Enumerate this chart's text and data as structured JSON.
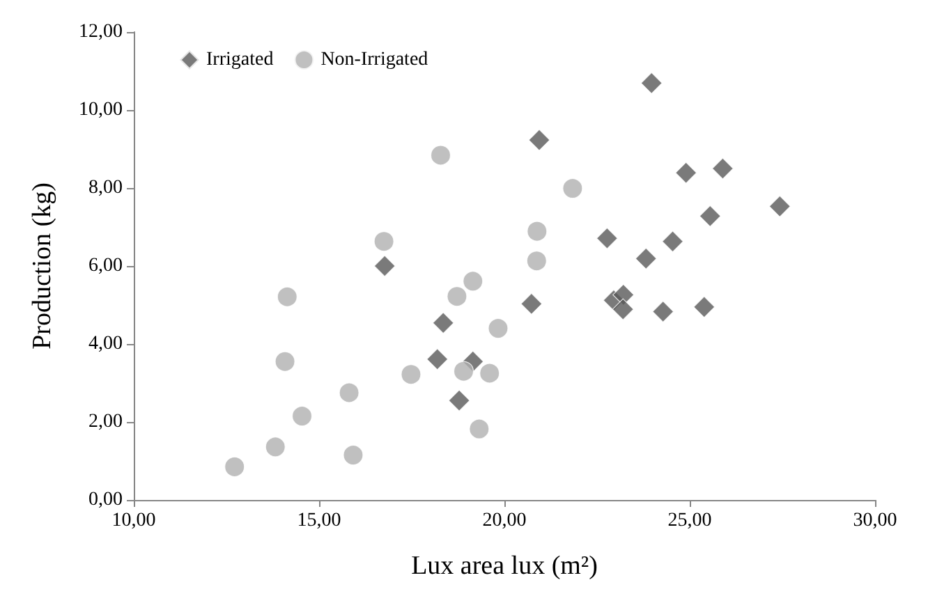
{
  "chart_data": {
    "type": "scatter",
    "xlabel": "Lux area lux (m²)",
    "ylabel": "Production (kg)",
    "xlim": [
      10,
      30
    ],
    "ylim": [
      0,
      12
    ],
    "xticks": [
      {
        "value": 10,
        "label": "10,00"
      },
      {
        "value": 15,
        "label": "15,00"
      },
      {
        "value": 20,
        "label": "20,00"
      },
      {
        "value": 25,
        "label": "25,00"
      },
      {
        "value": 30,
        "label": "30,00"
      }
    ],
    "yticks": [
      {
        "value": 0,
        "label": "0,00"
      },
      {
        "value": 2,
        "label": "2,00"
      },
      {
        "value": 4,
        "label": "4,00"
      },
      {
        "value": 6,
        "label": "6,00"
      },
      {
        "value": 8,
        "label": "8,00"
      },
      {
        "value": 10,
        "label": "10,00"
      },
      {
        "value": 12,
        "label": "12,00"
      }
    ],
    "grid": false,
    "legend": "top left",
    "series": [
      {
        "name": "Irrigated",
        "color": "#595959",
        "marker": "diamond",
        "x": [
          16.77,
          18.35,
          18.19,
          19.15,
          18.78,
          20.73,
          20.94,
          22.77,
          22.95,
          23.21,
          23.2,
          23.82,
          23.97,
          24.28,
          24.54,
          24.9,
          25.39,
          25.55,
          25.89,
          27.43
        ],
        "values": [
          6.0,
          4.54,
          3.61,
          3.55,
          2.55,
          5.03,
          9.23,
          6.71,
          5.12,
          5.26,
          4.89,
          6.19,
          10.69,
          4.83,
          6.63,
          8.39,
          4.95,
          7.28,
          8.5,
          7.53
        ]
      },
      {
        "name": "Non-Irrigated",
        "color": "#b0b0b0",
        "marker": "circle",
        "x": [
          12.72,
          13.82,
          14.08,
          14.14,
          14.54,
          15.81,
          15.92,
          16.75,
          17.48,
          18.28,
          18.72,
          18.9,
          19.15,
          19.32,
          19.6,
          19.83,
          20.87,
          20.88,
          21.84
        ],
        "values": [
          0.85,
          1.36,
          3.55,
          5.21,
          2.15,
          2.75,
          1.15,
          6.63,
          3.22,
          8.84,
          5.22,
          3.3,
          5.61,
          1.82,
          3.25,
          4.4,
          6.13,
          6.89,
          7.99
        ]
      }
    ]
  }
}
